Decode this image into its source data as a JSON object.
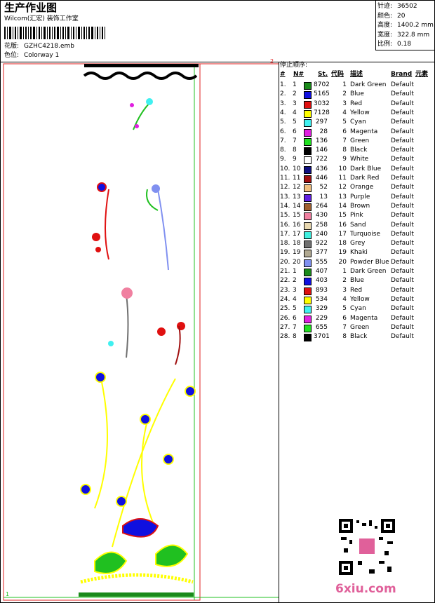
{
  "header": {
    "title": "生产作业图",
    "subtitle": "Wilcom(汇宏) 装饰工作室",
    "pattern_label": "花版:",
    "pattern": "GZHC4218.emb",
    "colorway_label": "色位:",
    "colorway": "Colorway 1"
  },
  "stats": [
    {
      "label": "针迹:",
      "value": "36502"
    },
    {
      "label": "颜色:",
      "value": "20"
    },
    {
      "label": "高度:",
      "value": "1400.2 mm"
    },
    {
      "label": "宽度:",
      "value": "322.8 mm"
    },
    {
      "label": "比例:",
      "value": "0.18"
    }
  ],
  "design": {
    "markers": [
      "2",
      "1"
    ]
  },
  "table": {
    "caption": "停止顺序:",
    "columns": [
      "#",
      "N#",
      "St.",
      "代码",
      "描述",
      "Brand",
      "元素"
    ],
    "rows": [
      [
        "1.",
        "1",
        "#1a8a1a",
        "8702",
        "1",
        "Dark Green",
        "Default"
      ],
      [
        "2.",
        "2",
        "#1010e0",
        "5165",
        "2",
        "Blue",
        "Default"
      ],
      [
        "3.",
        "3",
        "#e01010",
        "3032",
        "3",
        "Red",
        "Default"
      ],
      [
        "4.",
        "4",
        "#ffff00",
        "7128",
        "4",
        "Yellow",
        "Default"
      ],
      [
        "5.",
        "5",
        "#40f0f0",
        "297",
        "5",
        "Cyan",
        "Default"
      ],
      [
        "6.",
        "6",
        "#e020e0",
        "28",
        "6",
        "Magenta",
        "Default"
      ],
      [
        "7.",
        "7",
        "#20e020",
        "136",
        "7",
        "Green",
        "Default"
      ],
      [
        "8.",
        "8",
        "#000000",
        "146",
        "8",
        "Black",
        "Default"
      ],
      [
        "9.",
        "9",
        "#ffffff",
        "722",
        "9",
        "White",
        "Default"
      ],
      [
        "10.",
        "10",
        "#101080",
        "436",
        "10",
        "Dark Blue",
        "Default"
      ],
      [
        "11.",
        "11",
        "#a01010",
        "446",
        "11",
        "Dark Red",
        "Default"
      ],
      [
        "12.",
        "12",
        "#f0c080",
        "52",
        "12",
        "Orange",
        "Default"
      ],
      [
        "13.",
        "13",
        "#6020e0",
        "13",
        "13",
        "Purple",
        "Default"
      ],
      [
        "14.",
        "14",
        "#a06030",
        "264",
        "14",
        "Brown",
        "Default"
      ],
      [
        "15.",
        "15",
        "#f080a0",
        "430",
        "15",
        "Pink",
        "Default"
      ],
      [
        "16.",
        "16",
        "#e8d8b0",
        "258",
        "16",
        "Sand",
        "Default"
      ],
      [
        "17.",
        "17",
        "#40f0e0",
        "240",
        "17",
        "Turquoise",
        "Default"
      ],
      [
        "18.",
        "18",
        "#707070",
        "922",
        "18",
        "Grey",
        "Default"
      ],
      [
        "19.",
        "19",
        "#b0a890",
        "377",
        "19",
        "Khaki",
        "Default"
      ],
      [
        "20.",
        "20",
        "#8090f0",
        "555",
        "20",
        "Powder Blue",
        "Default"
      ],
      [
        "21.",
        "1",
        "#1a8a1a",
        "407",
        "1",
        "Dark Green",
        "Default"
      ],
      [
        "22.",
        "2",
        "#1010e0",
        "403",
        "2",
        "Blue",
        "Default"
      ],
      [
        "23.",
        "3",
        "#e01010",
        "893",
        "3",
        "Red",
        "Default"
      ],
      [
        "24.",
        "4",
        "#ffff00",
        "534",
        "4",
        "Yellow",
        "Default"
      ],
      [
        "25.",
        "5",
        "#40f0f0",
        "329",
        "5",
        "Cyan",
        "Default"
      ],
      [
        "26.",
        "6",
        "#e020e0",
        "229",
        "6",
        "Magenta",
        "Default"
      ],
      [
        "27.",
        "7",
        "#20e020",
        "655",
        "7",
        "Green",
        "Default"
      ],
      [
        "28.",
        "8",
        "#000000",
        "3701",
        "8",
        "Black",
        "Default"
      ]
    ]
  },
  "watermark": "6xiu.com"
}
